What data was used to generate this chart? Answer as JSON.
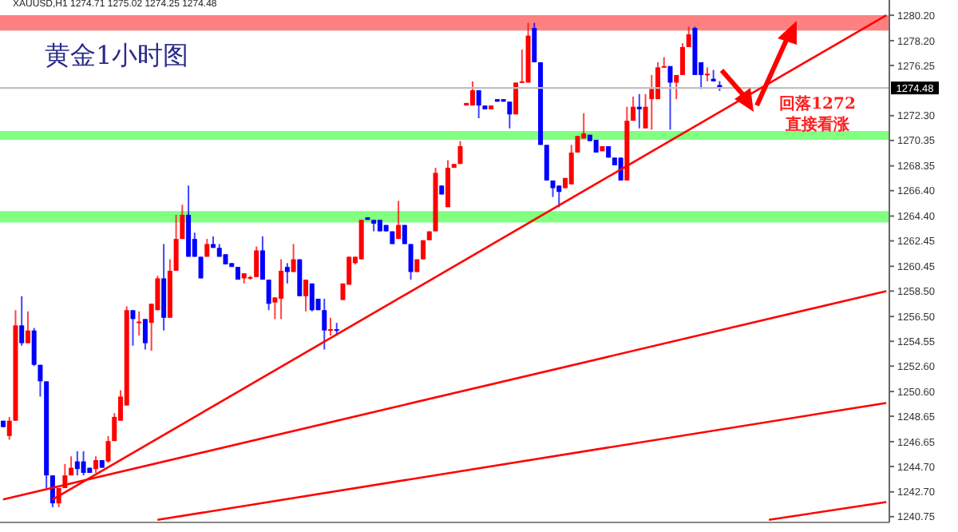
{
  "chart_data": {
    "type": "candlestick",
    "title": "黄金1小时图",
    "subtitle": "XAUUSD,H1 1274.71 1275.02 1274.25 1274.48",
    "categories": [
      null,
      null,
      null,
      null,
      null,
      null,
      null,
      null,
      null,
      null,
      null,
      null,
      null,
      null,
      null,
      null,
      null,
      null,
      null,
      null,
      null,
      null,
      null,
      null,
      null,
      null,
      null,
      null,
      null,
      null,
      null,
      null,
      null,
      null,
      null,
      null,
      null,
      null,
      null,
      null,
      null,
      null,
      null,
      null,
      null,
      null,
      null,
      null,
      null,
      null,
      null,
      null,
      null,
      null,
      null,
      null,
      null,
      null,
      null,
      null,
      null,
      null,
      null,
      null,
      null,
      null,
      null,
      null,
      null,
      null,
      null,
      null,
      null,
      null,
      null,
      null,
      null,
      null,
      null,
      null,
      null,
      null,
      null,
      null,
      null,
      null,
      null,
      null,
      null,
      null,
      null,
      null,
      null,
      null,
      null,
      null,
      null,
      null,
      null,
      null,
      null,
      null,
      null,
      null,
      null,
      null,
      null,
      null,
      null,
      null,
      null,
      null,
      null,
      null,
      null,
      null,
      null,
      null,
      null,
      null,
      null,
      null,
      null,
      null,
      null,
      null,
      null,
      null,
      null,
      null,
      null,
      null,
      null,
      null,
      null,
      null,
      null,
      null,
      null,
      null,
      null,
      null,
      null,
      null
    ],
    "ohlc": [
      [
        1248.3,
        1248.3,
        1247.8,
        1247.8
      ],
      [
        1247.1,
        1248.6,
        1246.8,
        1248.3
      ],
      [
        1248.3,
        1257.0,
        1248.3,
        1255.8
      ],
      [
        1255.8,
        1258.1,
        1254.2,
        1254.4
      ],
      [
        1254.4,
        1256.9,
        1254.4,
        1255.4
      ],
      [
        1255.4,
        1255.6,
        1252.6,
        1252.7
      ],
      [
        1252.7,
        1252.7,
        1250.2,
        1251.4
      ],
      [
        1251.4,
        1251.4,
        1243.0,
        1244.0
      ],
      [
        1244.0,
        1244.0,
        1241.5,
        1241.8
      ],
      [
        1241.8,
        1243.0,
        1241.5,
        1243.0
      ],
      [
        1243.0,
        1244.9,
        1243.0,
        1244.0
      ],
      [
        1244.0,
        1245.5,
        1244.0,
        1244.6
      ],
      [
        1245.1,
        1245.9,
        1244.0,
        1244.5
      ],
      [
        1245.1,
        1245.9,
        1244.0,
        1244.2
      ],
      [
        1244.6,
        1244.6,
        1244.2,
        1244.2
      ],
      [
        1244.5,
        1245.5,
        1244.2,
        1245.2
      ],
      [
        1245.2,
        1245.2,
        1244.6,
        1244.6
      ],
      [
        1245.1,
        1247.1,
        1245.0,
        1246.7
      ],
      [
        1246.7,
        1248.9,
        1246.7,
        1248.6
      ],
      [
        1248.3,
        1250.7,
        1248.3,
        1250.2
      ],
      [
        1249.5,
        1257.3,
        1249.5,
        1257.0
      ],
      [
        1257.0,
        1257.0,
        1254.2,
        1256.3
      ],
      [
        1256.0,
        1256.9,
        1255.0,
        1256.1
      ],
      [
        1256.3,
        1256.3,
        1253.9,
        1254.4
      ],
      [
        1256.0,
        1257.5,
        1253.8,
        1257.5
      ],
      [
        1257.0,
        1259.7,
        1257.0,
        1259.5
      ],
      [
        1259.5,
        1262.2,
        1255.4,
        1256.4
      ],
      [
        1256.4,
        1261.0,
        1256.4,
        1260.1
      ],
      [
        1260.1,
        1264.5,
        1260.1,
        1262.6
      ],
      [
        1262.6,
        1265.3,
        1262.6,
        1264.5
      ],
      [
        1264.5,
        1266.8,
        1261.2,
        1261.2
      ],
      [
        1262.6,
        1263.1,
        1261.2,
        1261.2
      ],
      [
        1261.2,
        1261.2,
        1259.5,
        1259.5
      ],
      [
        1261.2,
        1262.6,
        1261.2,
        1262.2
      ],
      [
        1262.2,
        1262.8,
        1261.9,
        1261.9
      ],
      [
        1261.9,
        1262.2,
        1261.2,
        1261.2
      ],
      [
        1261.4,
        1261.4,
        1260.6,
        1260.6
      ],
      [
        1260.7,
        1260.7,
        1260.4,
        1260.4
      ],
      [
        1260.4,
        1260.4,
        1259.4,
        1259.4
      ],
      [
        1259.5,
        1259.9,
        1259.1,
        1259.9
      ],
      [
        1259.5,
        1259.7,
        1259.4,
        1259.6
      ],
      [
        1259.6,
        1262.0,
        1259.6,
        1261.7
      ],
      [
        1261.7,
        1262.8,
        1259.4,
        1259.4
      ],
      [
        1259.4,
        1259.4,
        1257.0,
        1257.5
      ],
      [
        1257.6,
        1258.0,
        1256.3,
        1258.0
      ],
      [
        1257.9,
        1261.0,
        1256.3,
        1260.1
      ],
      [
        1260.4,
        1260.7,
        1259.1,
        1260.0
      ],
      [
        1260.0,
        1262.2,
        1260.0,
        1261.0
      ],
      [
        1261.0,
        1261.0,
        1258.1,
        1258.1
      ],
      [
        1258.1,
        1259.4,
        1256.9,
        1259.4
      ],
      [
        1259.1,
        1259.1,
        1256.9,
        1257.0
      ],
      [
        1257.9,
        1257.9,
        1257.0,
        1257.0
      ],
      [
        1257.0,
        1257.9,
        1253.9,
        1255.4
      ],
      [
        1255.4,
        1256.4,
        1255.0,
        1255.5
      ],
      [
        1255.5,
        1256.0,
        1255.0,
        1255.4
      ],
      [
        1257.8,
        1259.1,
        1257.8,
        1259.1
      ],
      [
        1259.0,
        1261.2,
        1259.0,
        1261.2
      ],
      [
        1260.7,
        1261.2,
        1260.6,
        1261.2
      ],
      [
        1261.0,
        1264.1,
        1261.0,
        1264.1
      ],
      [
        1264.3,
        1264.3,
        1264.1,
        1264.1
      ],
      [
        1264.1,
        1264.1,
        1263.2,
        1263.8
      ],
      [
        1264.1,
        1264.1,
        1263.2,
        1263.2
      ],
      [
        1263.7,
        1263.7,
        1263.2,
        1263.2
      ],
      [
        1263.2,
        1263.2,
        1262.2,
        1262.2
      ],
      [
        1262.6,
        1265.6,
        1262.6,
        1263.7
      ],
      [
        1263.7,
        1263.7,
        1262.2,
        1262.2
      ],
      [
        1262.2,
        1262.2,
        1259.4,
        1260.0
      ],
      [
        1260.0,
        1261.0,
        1260.0,
        1261.0
      ],
      [
        1261.0,
        1262.5,
        1261.0,
        1262.5
      ],
      [
        1262.5,
        1263.2,
        1262.5,
        1263.2
      ],
      [
        1263.2,
        1268.2,
        1263.2,
        1267.8
      ],
      [
        1266.8,
        1266.8,
        1266.1,
        1266.1
      ],
      [
        1265.1,
        1268.8,
        1265.1,
        1268.2
      ],
      [
        1268.2,
        1268.5,
        1268.2,
        1268.5
      ],
      [
        1268.5,
        1270.3,
        1268.5,
        1269.9
      ],
      [
        1273.1,
        1273.3,
        1273.1,
        1273.3
      ],
      [
        1273.1,
        1275.0,
        1273.1,
        1274.3
      ],
      [
        1274.3,
        1274.3,
        1272.1,
        1273.1
      ],
      [
        1273.1,
        1273.1,
        1272.8,
        1272.8
      ],
      [
        1272.8,
        1273.1,
        1272.8,
        1273.1
      ],
      [
        1273.6,
        1273.6,
        1273.4,
        1273.4
      ],
      [
        1273.6,
        1273.6,
        1273.4,
        1273.4
      ],
      [
        1273.4,
        1273.4,
        1271.3,
        1272.4
      ],
      [
        1272.4,
        1274.9,
        1272.4,
        1274.9
      ],
      [
        1274.9,
        1277.5,
        1274.9,
        1275.0
      ],
      [
        1274.9,
        1279.6,
        1274.9,
        1278.6
      ],
      [
        1279.2,
        1279.6,
        1276.5,
        1276.5
      ],
      [
        1276.5,
        1276.5,
        1270.0,
        1270.0
      ],
      [
        1270.0,
        1270.0,
        1267.2,
        1267.2
      ],
      [
        1267.2,
        1267.2,
        1265.9,
        1266.6
      ],
      [
        1266.8,
        1266.8,
        1265.1,
        1266.3
      ],
      [
        1266.6,
        1267.4,
        1266.6,
        1267.4
      ],
      [
        1266.9,
        1270.0,
        1266.9,
        1269.4
      ],
      [
        1269.4,
        1270.7,
        1269.4,
        1270.7
      ],
      [
        1270.5,
        1272.5,
        1270.5,
        1270.9
      ],
      [
        1270.8,
        1270.8,
        1270.3,
        1270.3
      ],
      [
        1270.4,
        1270.4,
        1269.4,
        1269.4
      ],
      [
        1269.5,
        1269.9,
        1269.5,
        1269.9
      ],
      [
        1269.9,
        1269.9,
        1269.0,
        1269.0
      ],
      [
        1269.0,
        1269.0,
        1268.4,
        1268.4
      ],
      [
        1269.0,
        1269.0,
        1267.2,
        1267.2
      ],
      [
        1267.2,
        1273.0,
        1267.2,
        1271.9
      ],
      [
        1271.9,
        1273.8,
        1271.9,
        1273.0
      ],
      [
        1273.0,
        1274.0,
        1271.3,
        1272.8
      ],
      [
        1271.3,
        1274.0,
        1271.3,
        1273.0
      ],
      [
        1273.6,
        1275.5,
        1271.2,
        1274.4
      ],
      [
        1273.6,
        1276.5,
        1273.6,
        1276.1
      ],
      [
        1276.1,
        1276.9,
        1276.1,
        1276.2
      ],
      [
        1276.2,
        1276.2,
        1271.2,
        1274.9
      ],
      [
        1274.9,
        1275.5,
        1273.6,
        1275.5
      ],
      [
        1275.5,
        1278.0,
        1275.5,
        1277.7
      ],
      [
        1277.7,
        1279.3,
        1277.7,
        1278.7
      ],
      [
        1279.2,
        1279.3,
        1275.5,
        1275.5
      ],
      [
        1276.5,
        1276.5,
        1274.4,
        1275.5
      ],
      [
        1275.5,
        1276.1,
        1275.0,
        1275.6
      ],
      [
        1275.2,
        1275.9,
        1275.0,
        1275.0
      ],
      [
        1274.71,
        1275.02,
        1274.25,
        1274.48
      ],
      null,
      null,
      null,
      null,
      null,
      null,
      null,
      null,
      null,
      null,
      null,
      null,
      null,
      null,
      null,
      null,
      null,
      null,
      null,
      null,
      null,
      null,
      null,
      null,
      null,
      null,
      null
    ],
    "colors": [
      "#0000ff",
      "#ff0000",
      "#ff0000",
      "#0000ff",
      "#ff0000",
      "#0000ff",
      "#0000ff",
      "#0000ff",
      "#0000ff",
      "#ff0000",
      "#ff0000",
      "#ff0000",
      "#0000ff",
      "#0000ff",
      "#0000ff",
      "#ff0000",
      "#0000ff",
      "#ff0000",
      "#ff0000",
      "#ff0000",
      "#ff0000",
      "#0000ff",
      "#ff0000",
      "#0000ff",
      "#ff0000",
      "#ff0000",
      "#0000ff",
      "#ff0000",
      "#ff0000",
      "#ff0000",
      "#0000ff",
      "#0000ff",
      "#0000ff",
      "#ff0000",
      "#0000ff",
      "#0000ff",
      "#0000ff",
      "#0000ff",
      "#0000ff",
      "#ff0000",
      "#ff0000",
      "#ff0000",
      "#0000ff",
      "#0000ff",
      "#ff0000",
      "#ff0000",
      "#0000ff",
      "#ff0000",
      "#0000ff",
      "#ff0000",
      "#0000ff",
      "#0000ff",
      "#0000ff",
      "#ff0000",
      "#0000ff",
      "#ff0000",
      "#ff0000",
      "#ff0000",
      "#ff0000",
      "#0000ff",
      "#0000ff",
      "#0000ff",
      "#0000ff",
      "#0000ff",
      "#ff0000",
      "#0000ff",
      "#0000ff",
      "#ff0000",
      "#ff0000",
      "#ff0000",
      "#ff0000",
      "#0000ff",
      "#ff0000",
      "#ff0000",
      "#ff0000",
      "#ff0000",
      "#ff0000",
      "#0000ff",
      "#0000ff",
      "#ff0000",
      "#0000ff",
      "#0000ff",
      "#0000ff",
      "#ff0000",
      "#ff0000",
      "#ff0000",
      "#0000ff",
      "#0000ff",
      "#0000ff",
      "#0000ff",
      "#0000ff",
      "#ff0000",
      "#ff0000",
      "#ff0000",
      "#ff0000",
      "#0000ff",
      "#0000ff",
      "#ff0000",
      "#0000ff",
      "#0000ff",
      "#0000ff",
      "#ff0000",
      "#ff0000",
      "#0000ff",
      "#ff0000",
      "#ff0000",
      "#ff0000",
      "#ff0000",
      "#0000ff",
      "#ff0000",
      "#ff0000",
      "#ff0000",
      "#0000ff",
      "#0000ff",
      "#ff0000",
      "#0000ff",
      "#0000ff",
      null,
      null,
      null,
      null,
      null,
      null,
      null,
      null,
      null,
      null,
      null,
      null,
      null,
      null,
      null,
      null,
      null,
      null,
      null,
      null,
      null,
      null,
      null,
      null,
      null,
      null,
      null
    ],
    "series": [
      {
        "type": "line",
        "color": "#ff0000",
        "values": [
          null,
          null,
          null,
          null,
          null,
          null,
          null,
          null,
          1242.1,
          null,
          null,
          null,
          null,
          null,
          null,
          null,
          null,
          null,
          null,
          null,
          null,
          null,
          null,
          null,
          null,
          null,
          null,
          null,
          null,
          null,
          null,
          null,
          null,
          null,
          null,
          null,
          null,
          null,
          null,
          null,
          null,
          null,
          null,
          null,
          null,
          null,
          null,
          null,
          null,
          null,
          null,
          null,
          null,
          null,
          null,
          null,
          null,
          null,
          null,
          null,
          null,
          null,
          null,
          null,
          null,
          null,
          null,
          null,
          null,
          null,
          null,
          null,
          null,
          null,
          null,
          null,
          null,
          null,
          null,
          null,
          null,
          null,
          null,
          null,
          null,
          null,
          null,
          null,
          null,
          null,
          null,
          null,
          null,
          null,
          null,
          null,
          null,
          null,
          null,
          null,
          null,
          null,
          null,
          null,
          null,
          null,
          null,
          null,
          null,
          null,
          null,
          null,
          null,
          null,
          null,
          null,
          null,
          null,
          null,
          null,
          null,
          null,
          null,
          null,
          null,
          null,
          null,
          null,
          null,
          null,
          null,
          null,
          null,
          null,
          null,
          null,
          null,
          null,
          null,
          null,
          null,
          null,
          null,
          1280.2
        ]
      },
      {
        "type": "line",
        "color": "#ff0000",
        "values": [
          1242.1,
          null,
          null,
          null,
          null,
          null,
          null,
          null,
          null,
          null,
          null,
          null,
          null,
          null,
          null,
          null,
          null,
          null,
          null,
          null,
          null,
          null,
          null,
          null,
          null,
          null,
          null,
          null,
          null,
          null,
          null,
          null,
          null,
          null,
          null,
          null,
          null,
          null,
          null,
          null,
          null,
          null,
          null,
          null,
          null,
          null,
          null,
          null,
          null,
          null,
          null,
          null,
          null,
          null,
          null,
          null,
          null,
          null,
          null,
          null,
          null,
          null,
          null,
          null,
          null,
          null,
          null,
          null,
          null,
          null,
          null,
          null,
          null,
          null,
          null,
          null,
          null,
          null,
          null,
          null,
          null,
          null,
          null,
          null,
          null,
          null,
          null,
          null,
          null,
          null,
          null,
          null,
          null,
          null,
          null,
          null,
          null,
          null,
          null,
          null,
          null,
          null,
          null,
          null,
          null,
          null,
          null,
          null,
          null,
          null,
          null,
          null,
          null,
          null,
          null,
          null,
          null,
          null,
          null,
          null,
          null,
          null,
          null,
          null,
          null,
          null,
          null,
          null,
          null,
          null,
          null,
          null,
          null,
          null,
          null,
          null,
          null,
          null,
          null,
          null,
          null,
          null,
          null,
          1258.5
        ]
      },
      {
        "type": "line",
        "color": "#ff0000",
        "values": [
          null,
          null,
          null,
          null,
          null,
          null,
          null,
          null,
          null,
          null,
          null,
          null,
          null,
          null,
          null,
          null,
          null,
          null,
          null,
          null,
          null,
          null,
          null,
          null,
          null,
          1240.5,
          null,
          null,
          null,
          null,
          null,
          null,
          null,
          null,
          null,
          null,
          null,
          null,
          null,
          null,
          null,
          null,
          null,
          null,
          null,
          null,
          null,
          null,
          null,
          null,
          null,
          null,
          null,
          null,
          null,
          null,
          null,
          null,
          null,
          null,
          null,
          null,
          null,
          null,
          null,
          null,
          null,
          null,
          null,
          null,
          null,
          null,
          null,
          null,
          null,
          null,
          null,
          null,
          null,
          null,
          null,
          null,
          null,
          null,
          null,
          null,
          null,
          null,
          null,
          null,
          null,
          null,
          null,
          null,
          null,
          null,
          null,
          null,
          null,
          null,
          null,
          null,
          null,
          null,
          null,
          null,
          null,
          null,
          null,
          null,
          null,
          null,
          null,
          null,
          null,
          null,
          null,
          null,
          null,
          null,
          null,
          null,
          null,
          null,
          null,
          null,
          null,
          null,
          null,
          null,
          null,
          null,
          null,
          null,
          null,
          null,
          null,
          null,
          null,
          null,
          null,
          null,
          null,
          1249.7
        ]
      },
      {
        "type": "line",
        "color": "#ff0000",
        "values": [
          null,
          null,
          null,
          null,
          null,
          null,
          null,
          null,
          null,
          null,
          null,
          null,
          null,
          null,
          null,
          null,
          null,
          null,
          null,
          null,
          null,
          null,
          null,
          null,
          null,
          null,
          null,
          null,
          null,
          null,
          null,
          null,
          null,
          null,
          null,
          null,
          null,
          null,
          null,
          null,
          null,
          null,
          null,
          null,
          null,
          null,
          null,
          null,
          null,
          null,
          null,
          null,
          null,
          null,
          null,
          null,
          null,
          null,
          null,
          null,
          null,
          null,
          null,
          null,
          null,
          null,
          null,
          null,
          null,
          null,
          null,
          null,
          null,
          null,
          null,
          null,
          null,
          null,
          null,
          null,
          null,
          null,
          null,
          null,
          null,
          null,
          null,
          null,
          null,
          null,
          null,
          null,
          null,
          null,
          null,
          null,
          null,
          null,
          null,
          null,
          null,
          null,
          null,
          null,
          null,
          null,
          null,
          null,
          null,
          null,
          null,
          null,
          null,
          null,
          null,
          null,
          null,
          null,
          null,
          null,
          null,
          null,
          null,
          null,
          1240.5,
          null,
          null,
          null,
          null,
          null,
          null,
          null,
          null,
          null,
          null,
          null,
          null,
          null,
          null,
          null,
          null,
          null,
          null,
          1241.9
        ]
      }
    ],
    "bands": [
      {
        "axis": "y",
        "from": 1279.0,
        "to": 1280.2,
        "color": "#ff8080"
      },
      {
        "axis": "y",
        "from": 1270.4,
        "to": 1271.1,
        "color": "#80ff80"
      },
      {
        "axis": "y",
        "from": 1263.9,
        "to": 1264.8,
        "color": "#80ff80"
      }
    ],
    "ref_lines": [
      {
        "axis": "y",
        "value": 1274.48,
        "label": "1274.48",
        "color": "#c0c0c0"
      }
    ],
    "annotations": [
      "回落1272",
      "直接看涨"
    ],
    "ylim": [
      1240.3,
      1281.4
    ],
    "yticks": [
      {
        "value": 1280.2,
        "label": "1280.20"
      },
      {
        "value": 1278.2,
        "label": "1278.20"
      },
      {
        "value": 1276.25,
        "label": "1276.25"
      },
      {
        "value": 1272.3,
        "label": "1272.30"
      },
      {
        "value": 1270.35,
        "label": "1270.35"
      },
      {
        "value": 1268.35,
        "label": "1268.35"
      },
      {
        "value": 1266.4,
        "label": "1266.40"
      },
      {
        "value": 1264.4,
        "label": "1264.40"
      },
      {
        "value": 1262.45,
        "label": "1262.45"
      },
      {
        "value": 1260.45,
        "label": "1260.45"
      },
      {
        "value": 1258.5,
        "label": "1258.50"
      },
      {
        "value": 1256.5,
        "label": "1256.50"
      },
      {
        "value": 1254.55,
        "label": "1254.55"
      },
      {
        "value": 1252.6,
        "label": "1252.60"
      },
      {
        "value": 1250.6,
        "label": "1250.60"
      },
      {
        "value": 1248.65,
        "label": "1248.65"
      },
      {
        "value": 1246.65,
        "label": "1246.65"
      },
      {
        "value": 1244.7,
        "label": "1244.70"
      },
      {
        "value": 1242.7,
        "label": "1242.70"
      },
      {
        "value": 1240.75,
        "label": "1240.75"
      }
    ]
  }
}
